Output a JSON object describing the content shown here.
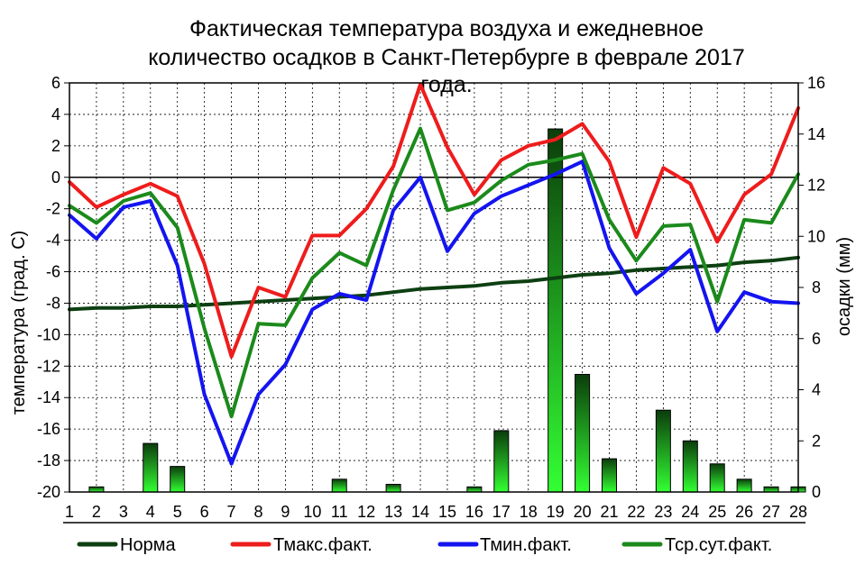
{
  "chart_data": {
    "type": "line",
    "title_lines": [
      "Фактическая температура воздуха и ежедневное",
      "количество осадков в Санкт-Петербурге в феврале 2017",
      "года."
    ],
    "ylabel": "температура (град. С)",
    "y2label": "осадки (мм)",
    "ylim": [
      -20,
      6
    ],
    "y2lim": [
      0,
      16
    ],
    "yticks": [
      "6",
      "4",
      "2",
      "0",
      "-2",
      "-4",
      "-6",
      "-8",
      "-10",
      "-12",
      "-14",
      "-16",
      "-18",
      "-20"
    ],
    "y2ticks": [
      "16",
      "14",
      "12",
      "10",
      "8",
      "6",
      "4",
      "2",
      "0"
    ],
    "x": [
      "1",
      "2",
      "3",
      "4",
      "5",
      "6",
      "7",
      "8",
      "9",
      "10",
      "11",
      "12",
      "13",
      "14",
      "15",
      "16",
      "17",
      "18",
      "19",
      "20",
      "21",
      "22",
      "23",
      "24",
      "25",
      "26",
      "27",
      "28"
    ],
    "grid": true,
    "legend_position": "bottom",
    "series": [
      {
        "name": "Норма",
        "color": "#0d3f12",
        "values": [
          -8.4,
          -8.3,
          -8.3,
          -8.2,
          -8.2,
          -8.1,
          -8.0,
          -7.9,
          -7.8,
          -7.7,
          -7.6,
          -7.5,
          -7.3,
          -7.1,
          -7.0,
          -6.9,
          -6.7,
          -6.6,
          -6.4,
          -6.2,
          -6.1,
          -5.9,
          -5.8,
          -5.7,
          -5.6,
          -5.4,
          -5.3,
          -5.1
        ]
      },
      {
        "name": "Тмакс.факт.",
        "color": "#ee1c1c",
        "values": [
          -0.3,
          -1.9,
          -1.1,
          -0.4,
          -1.2,
          -5.5,
          -11.4,
          -7.0,
          -7.6,
          -3.7,
          -3.7,
          -2.0,
          0.7,
          5.9,
          1.9,
          -1.1,
          1.1,
          2.0,
          2.4,
          3.4,
          1.0,
          -3.8,
          0.6,
          -0.4,
          -4.1,
          -1.1,
          0.2,
          4.4
        ]
      },
      {
        "name": "Тмин.факт.",
        "color": "#1414f0",
        "values": [
          -2.4,
          -3.9,
          -1.9,
          -1.5,
          -5.6,
          -13.8,
          -18.2,
          -13.8,
          -11.9,
          -8.4,
          -7.4,
          -7.8,
          -2.1,
          0.0,
          -4.7,
          -2.3,
          -1.2,
          -0.5,
          0.2,
          1.0,
          -4.5,
          -7.4,
          -6.1,
          -4.6,
          -9.8,
          -7.3,
          -7.9,
          -8.0
        ]
      },
      {
        "name": "Тср.сут.факт.",
        "color": "#1b8a1b",
        "values": [
          -1.8,
          -2.9,
          -1.5,
          -1.0,
          -3.2,
          -9.6,
          -15.2,
          -9.3,
          -9.4,
          -6.4,
          -4.8,
          -5.6,
          -0.8,
          3.1,
          -2.1,
          -1.6,
          -0.2,
          0.8,
          1.1,
          1.5,
          -2.7,
          -5.3,
          -3.1,
          -3.0,
          -7.9,
          -2.7,
          -2.9,
          0.2
        ]
      }
    ],
    "bars": {
      "axis": "y2",
      "values": [
        0,
        0.2,
        0,
        1.9,
        1.0,
        0,
        0,
        0,
        0,
        0,
        0.5,
        0,
        0.3,
        0,
        0,
        0.2,
        2.4,
        0,
        14.2,
        4.6,
        1.3,
        0,
        3.2,
        2.0,
        1.1,
        0.5,
        0.2,
        0.2
      ],
      "color_top": "#0b3d0b",
      "color_bottom": "#33ff33"
    }
  }
}
